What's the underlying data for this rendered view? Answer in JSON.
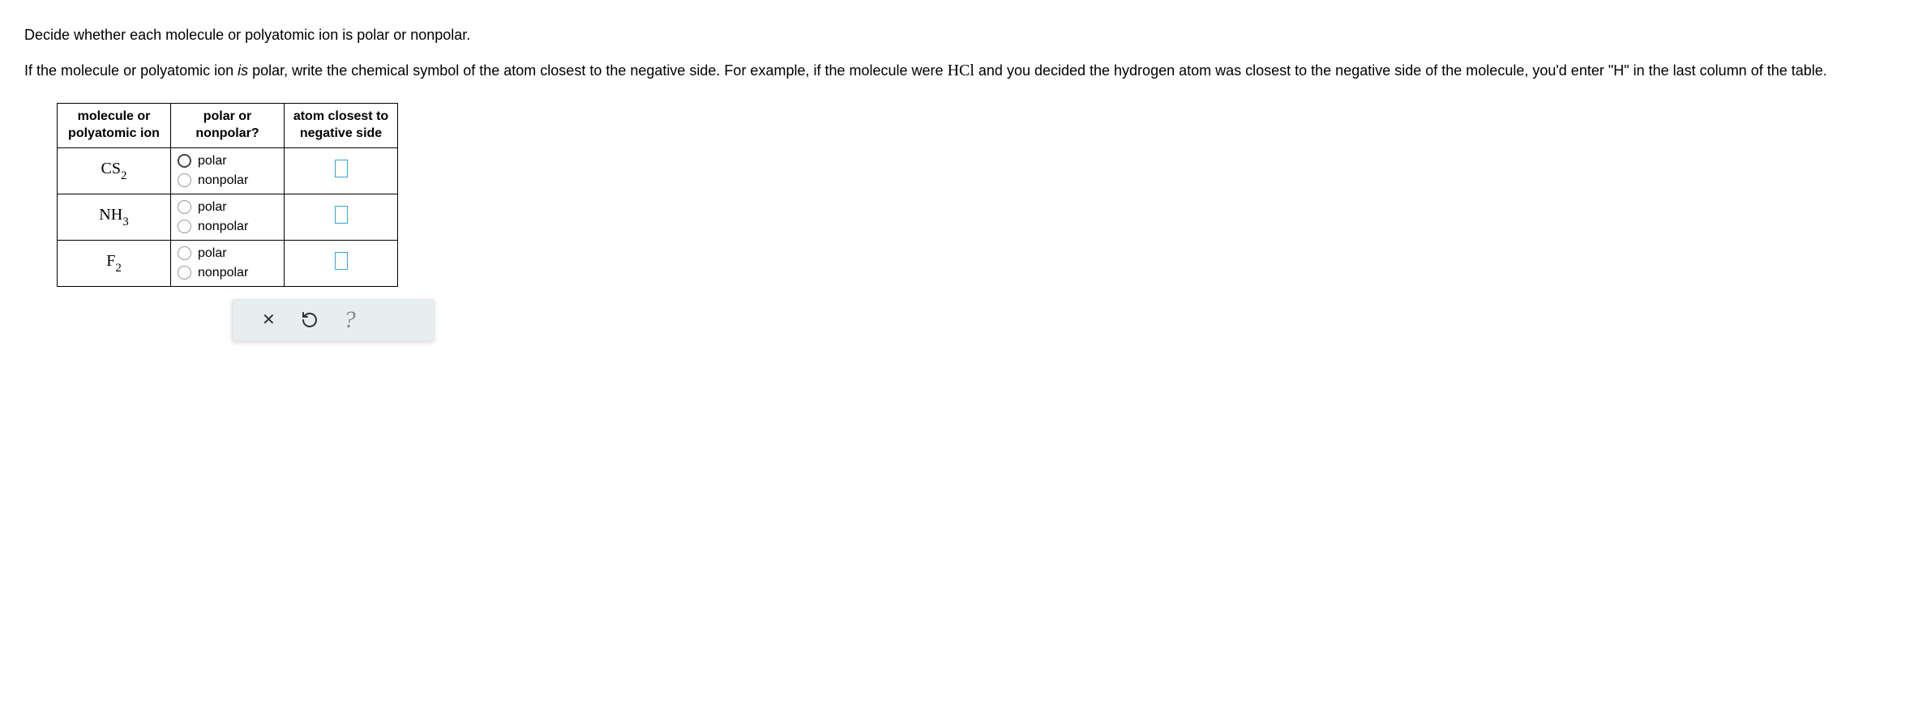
{
  "instructions": {
    "line1_part1": "Decide whether each molecule or polyatomic ion is polar or nonpolar.",
    "line2_part1": "If the molecule or polyatomic ion ",
    "line2_italic": "is",
    "line2_part2": " polar, write the chemical symbol of the atom closest to the negative side. For example, if the molecule were ",
    "line2_chem": "HCl",
    "line2_part3": " and you decided the hydrogen atom was closest to the negative side of the molecule, you'd enter ",
    "line2_quote": "\"H\"",
    "line2_part4": " in the last column of the table."
  },
  "table": {
    "headers": {
      "col1_line1": "molecule or",
      "col1_line2": "polyatomic ion",
      "col2_line1": "polar or",
      "col2_line2": "nonpolar?",
      "col3_line1": "atom closest to",
      "col3_line2": "negative side"
    },
    "labels": {
      "polar": "polar",
      "nonpolar": "nonpolar"
    },
    "rows": [
      {
        "formula_base": "CS",
        "formula_sub": "2",
        "selected": "polar"
      },
      {
        "formula_base": "NH",
        "formula_sub": "3",
        "selected": null
      },
      {
        "formula_base": "F",
        "formula_sub": "2",
        "selected": null
      }
    ]
  },
  "colors": {
    "input_border": "#36a3d9",
    "toolbar_bg": "#e6eef0",
    "text": "#000000",
    "help_color": "#888888"
  }
}
